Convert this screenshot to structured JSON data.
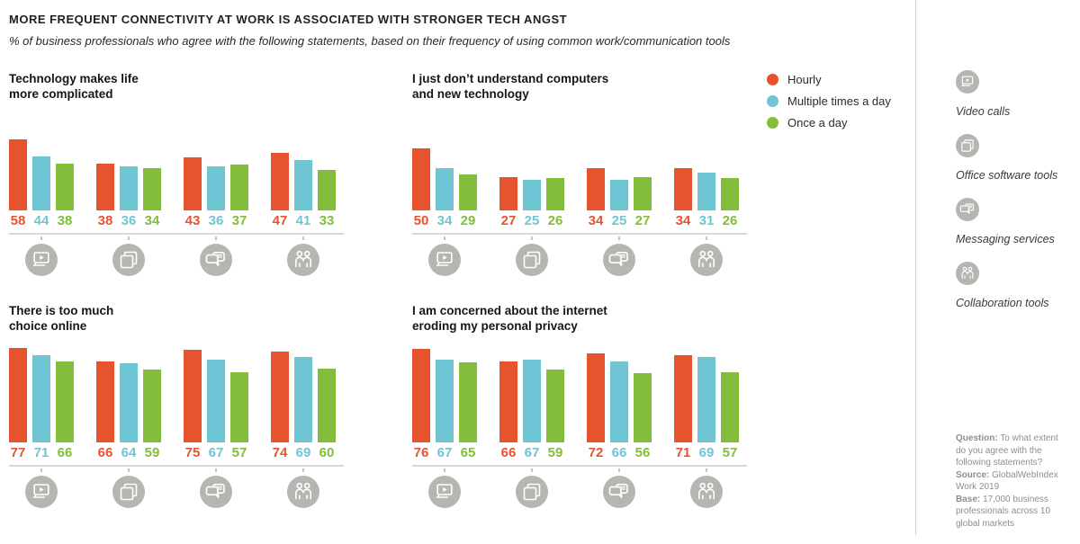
{
  "header": {
    "title": "MORE FREQUENT CONNECTIVITY AT WORK IS ASSOCIATED WITH STRONGER TECH ANGST",
    "subtitle": "% of business professionals who agree with the following statements, based on their frequency of using common work/communication tools"
  },
  "chart_data": {
    "type": "bar",
    "unit": "%",
    "ylim": [
      0,
      100
    ],
    "grid": false,
    "legend_position": "top-right",
    "series": [
      {
        "name": "Hourly",
        "color": "#E8532F"
      },
      {
        "name": "Multiple times a day",
        "color": "#6FC5D2"
      },
      {
        "name": "Once a day",
        "color": "#82BD3B"
      }
    ],
    "categories": [
      "Video calls",
      "Office software tools",
      "Messaging services",
      "Collaboration tools"
    ],
    "charts": [
      {
        "title_lines": [
          "Technology makes life",
          "more complicated"
        ],
        "values": [
          [
            58,
            44,
            38
          ],
          [
            38,
            36,
            34
          ],
          [
            43,
            36,
            37
          ],
          [
            47,
            41,
            33
          ]
        ]
      },
      {
        "title_lines": [
          "I just don’t understand computers",
          "and new technology"
        ],
        "values": [
          [
            50,
            34,
            29
          ],
          [
            27,
            25,
            26
          ],
          [
            34,
            25,
            27
          ],
          [
            34,
            31,
            26
          ]
        ]
      },
      {
        "title_lines": [
          "There is too much",
          "choice online"
        ],
        "values": [
          [
            77,
            71,
            66
          ],
          [
            66,
            64,
            59
          ],
          [
            75,
            67,
            57
          ],
          [
            74,
            69,
            60
          ]
        ]
      },
      {
        "title_lines": [
          "I am concerned about the internet",
          "eroding my personal privacy"
        ],
        "values": [
          [
            76,
            67,
            65
          ],
          [
            66,
            67,
            59
          ],
          [
            72,
            66,
            56
          ],
          [
            71,
            69,
            57
          ]
        ]
      }
    ]
  },
  "tools": [
    {
      "icon": "video-calls-icon",
      "label": "Video calls"
    },
    {
      "icon": "office-software-icon",
      "label": "Office software tools"
    },
    {
      "icon": "messaging-icon",
      "label": "Messaging services"
    },
    {
      "icon": "collaboration-icon",
      "label": "Collaboration tools"
    }
  ],
  "footnote": {
    "segments": [
      {
        "label": "Question:",
        "text": "To what extent do you agree with the following statements?"
      },
      {
        "label": "Source:",
        "text": "GlobalWebIndex Work 2019"
      },
      {
        "label": "Base:",
        "text": "17,000 business professionals across 10 global markets"
      }
    ]
  },
  "style_colors": {
    "icon_circle": "#b5b5b2",
    "axis_line": "#dadada",
    "divider": "#cfcfcf",
    "footnote_text": "#8e8e8e"
  }
}
